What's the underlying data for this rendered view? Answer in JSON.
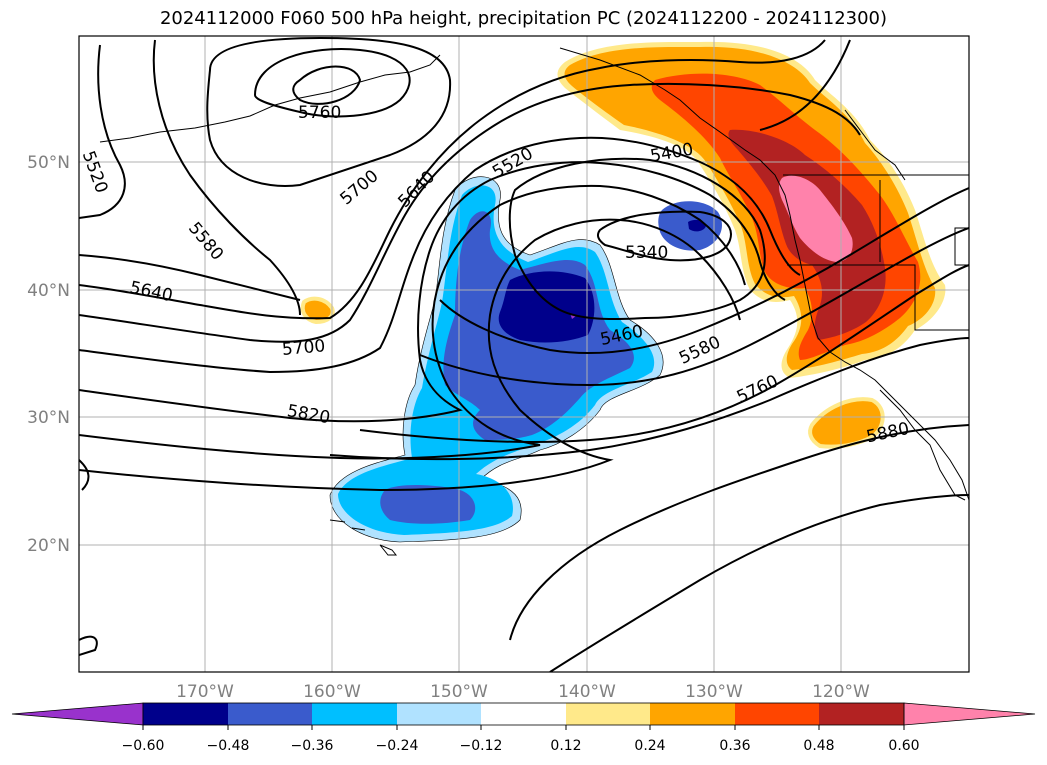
{
  "title": "2024112000 F060 500 hPa height, precipitation PC (2024112200 - 2024112300)",
  "map": {
    "lat_labels": [
      "50°N",
      "40°N",
      "30°N",
      "20°N"
    ],
    "lon_labels": [
      "170°W",
      "160°W",
      "150°W",
      "140°W",
      "130°W",
      "120°W"
    ],
    "contour_labels": [
      "5760",
      "5520",
      "5700",
      "5640",
      "5520",
      "5400",
      "5580",
      "5340",
      "5640",
      "5700",
      "5460",
      "5580",
      "5760",
      "5820",
      "5880"
    ],
    "fill_colors": {
      "neg_extreme": "#9932CC",
      "neg_060": "#00008B",
      "neg_048": "#3A5BCC",
      "neg_036": "#00BFFF",
      "neg_024": "#B0E2FF",
      "neutral": "#FFFFFF",
      "pos_012": "#FFE98A",
      "pos_024": "#FFA500",
      "pos_036": "#FF4500",
      "pos_048": "#B22222",
      "pos_060": "#FF82AB"
    }
  },
  "colorbar": {
    "ticks": [
      "−0.60",
      "−0.48",
      "−0.36",
      "−0.24",
      "−0.12",
      "0.12",
      "0.24",
      "0.36",
      "0.48",
      "0.60"
    ]
  }
}
